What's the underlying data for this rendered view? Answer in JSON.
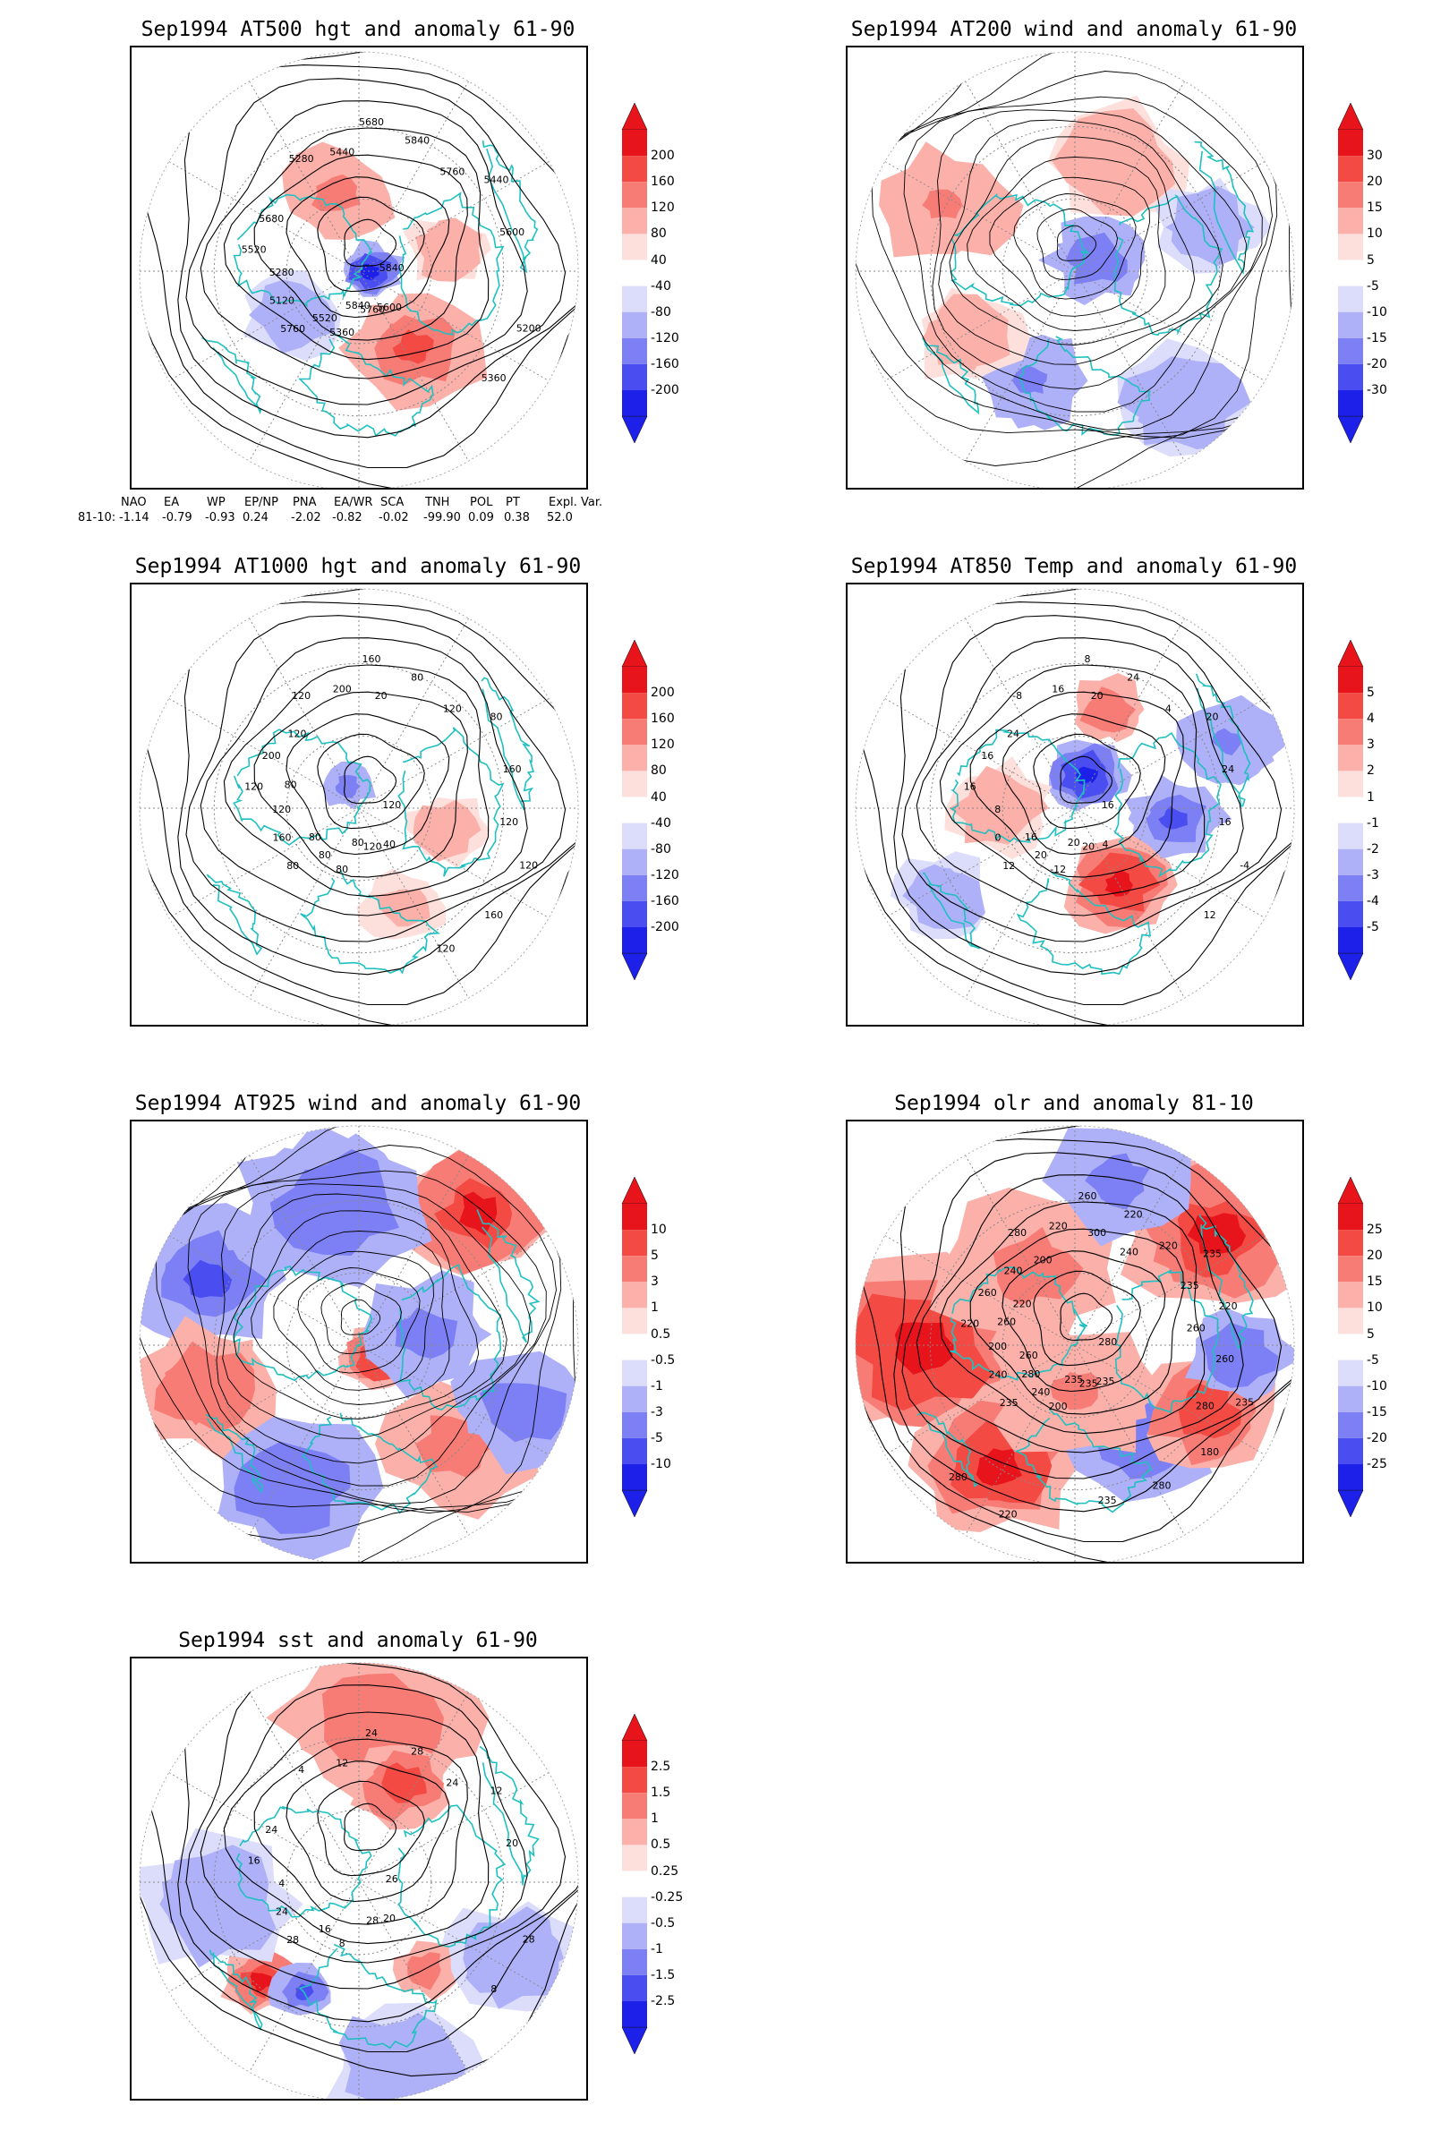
{
  "panels": [
    {
      "id": "at500",
      "title": "Sep1994 AT500 hgt and anomaly 61-90",
      "colorbar": [
        "200",
        "160",
        "120",
        "80",
        "40",
        "-40",
        "-80",
        "-120",
        "-160",
        "-200"
      ],
      "contour_labels": [
        "5840",
        "5760",
        "5680",
        "5600",
        "5520",
        "5440",
        "5360",
        "5280",
        "5200",
        "5120",
        "5840",
        "5760",
        "5680",
        "5600",
        "5520",
        "5440",
        "5360",
        "5280",
        "5760",
        "5840"
      ]
    },
    {
      "id": "at200",
      "title": "Sep1994 AT200 wind and anomaly 61-90",
      "colorbar": [
        "30",
        "20",
        "15",
        "10",
        "5",
        "-5",
        "-10",
        "-15",
        "-20",
        "-30"
      ],
      "contour_labels": []
    },
    {
      "id": "at1000",
      "title": "Sep1994 AT1000 hgt and anomaly 61-90",
      "colorbar": [
        "200",
        "160",
        "120",
        "80",
        "40",
        "-40",
        "-80",
        "-120",
        "-160",
        "-200"
      ],
      "contour_labels": [
        "120",
        "80",
        "160",
        "40",
        "120",
        "80",
        "80",
        "120",
        "120",
        "160",
        "80",
        "120",
        "200",
        "160",
        "80",
        "200",
        "160",
        "120",
        "120",
        "80",
        "120",
        "120",
        "80",
        "20",
        "120",
        "80"
      ]
    },
    {
      "id": "at850",
      "title": "Sep1994 AT850 Temp and anomaly 61-90",
      "colorbar": [
        "5",
        "4",
        "3",
        "2",
        "1",
        "-1",
        "-2",
        "-3",
        "-4",
        "-5"
      ],
      "contour_labels": [
        "16",
        "12",
        "8",
        "4",
        "16",
        "20",
        "-12",
        "-8",
        "-4",
        "0",
        "24",
        "20",
        "16",
        "24",
        "20",
        "16",
        "12",
        "8",
        "4",
        "20",
        "24",
        "16",
        "16",
        "20"
      ]
    },
    {
      "id": "at925",
      "title": "Sep1994 AT925 wind and anomaly 61-90",
      "colorbar": [
        "10",
        "5",
        "3",
        "1",
        "0.5",
        "-0.5",
        "-1",
        "-3",
        "-5",
        "-10"
      ],
      "contour_labels": []
    },
    {
      "id": "olr",
      "title": "Sep1994 olr and anomaly 81-10",
      "colorbar": [
        "25",
        "20",
        "15",
        "10",
        "5",
        "-5",
        "-10",
        "-15",
        "-20",
        "-25"
      ],
      "contour_labels": [
        "280",
        "235",
        "260",
        "235",
        "220",
        "235",
        "200",
        "280",
        "235",
        "240",
        "220",
        "235",
        "260",
        "220",
        "240",
        "220",
        "180",
        "200",
        "220",
        "235",
        "240",
        "260",
        "280",
        "300",
        "280",
        "260",
        "235",
        "220",
        "200",
        "280",
        "260",
        "240",
        "235",
        "220",
        "260",
        "280"
      ]
    },
    {
      "id": "sst",
      "title": "Sep1994 sst and anomaly 61-90",
      "colorbar": [
        "2.5",
        "1.5",
        "1",
        "0.5",
        "0.25",
        "-0.25",
        "-0.5",
        "-1",
        "-1.5",
        "-2.5"
      ],
      "contour_labels": [
        "26",
        "28",
        "24",
        "20",
        "16",
        "12",
        "8",
        "4",
        "28",
        "24",
        "28",
        "28",
        "24",
        "20",
        "16",
        "12",
        "8",
        "4",
        "24"
      ]
    }
  ],
  "teleconnection": {
    "headers": [
      "NAO",
      "EA",
      "WP",
      "EP/NP",
      "PNA",
      "EA/WR",
      "SCA",
      "TNH",
      "POL",
      "PT",
      "Expl. Var."
    ],
    "row_label": "81-10:",
    "values": [
      "-1.14",
      "-0.79",
      "-0.93",
      "0.24",
      "-2.02",
      "-0.82",
      "-0.02",
      "-99.90",
      "0.09",
      "0.38",
      "52.0"
    ]
  },
  "colors": {
    "coast": "#20c0c0",
    "contour": "#000000",
    "frame": "#000000"
  }
}
